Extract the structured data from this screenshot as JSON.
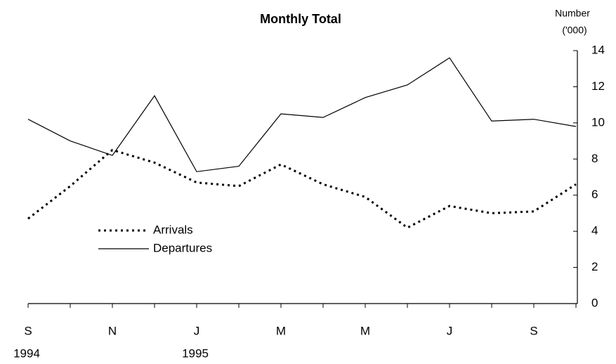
{
  "chart_data": {
    "type": "line",
    "title": "Monthly Total",
    "y_label": [
      "Number",
      "('000)"
    ],
    "categories": [
      "S",
      null,
      "N",
      null,
      "J",
      null,
      "M",
      null,
      "M",
      null,
      "J",
      null,
      "S",
      null
    ],
    "year_labels": [
      "1994",
      null,
      null,
      null,
      "1995",
      null,
      null,
      null,
      null,
      null,
      null,
      null,
      null,
      null
    ],
    "series": [
      {
        "name": "Arrivals",
        "color": "#000000",
        "dash": "dotted",
        "values": [
          4.7,
          6.5,
          8.5,
          7.8,
          6.7,
          6.5,
          7.7,
          6.6,
          5.9,
          4.2,
          5.4,
          5.0,
          5.1,
          6.6
        ]
      },
      {
        "name": "Departures",
        "color": "#000000",
        "dash": "solid",
        "values": [
          10.2,
          9.0,
          8.2,
          11.5,
          7.3,
          7.6,
          10.5,
          10.3,
          11.4,
          12.1,
          13.6,
          10.1,
          10.2,
          9.8
        ]
      }
    ],
    "ylim": [
      0,
      14
    ],
    "yticks": [
      0,
      2,
      4,
      6,
      8,
      10,
      12,
      14
    ],
    "y_axis_side": "right",
    "legend": "left"
  }
}
